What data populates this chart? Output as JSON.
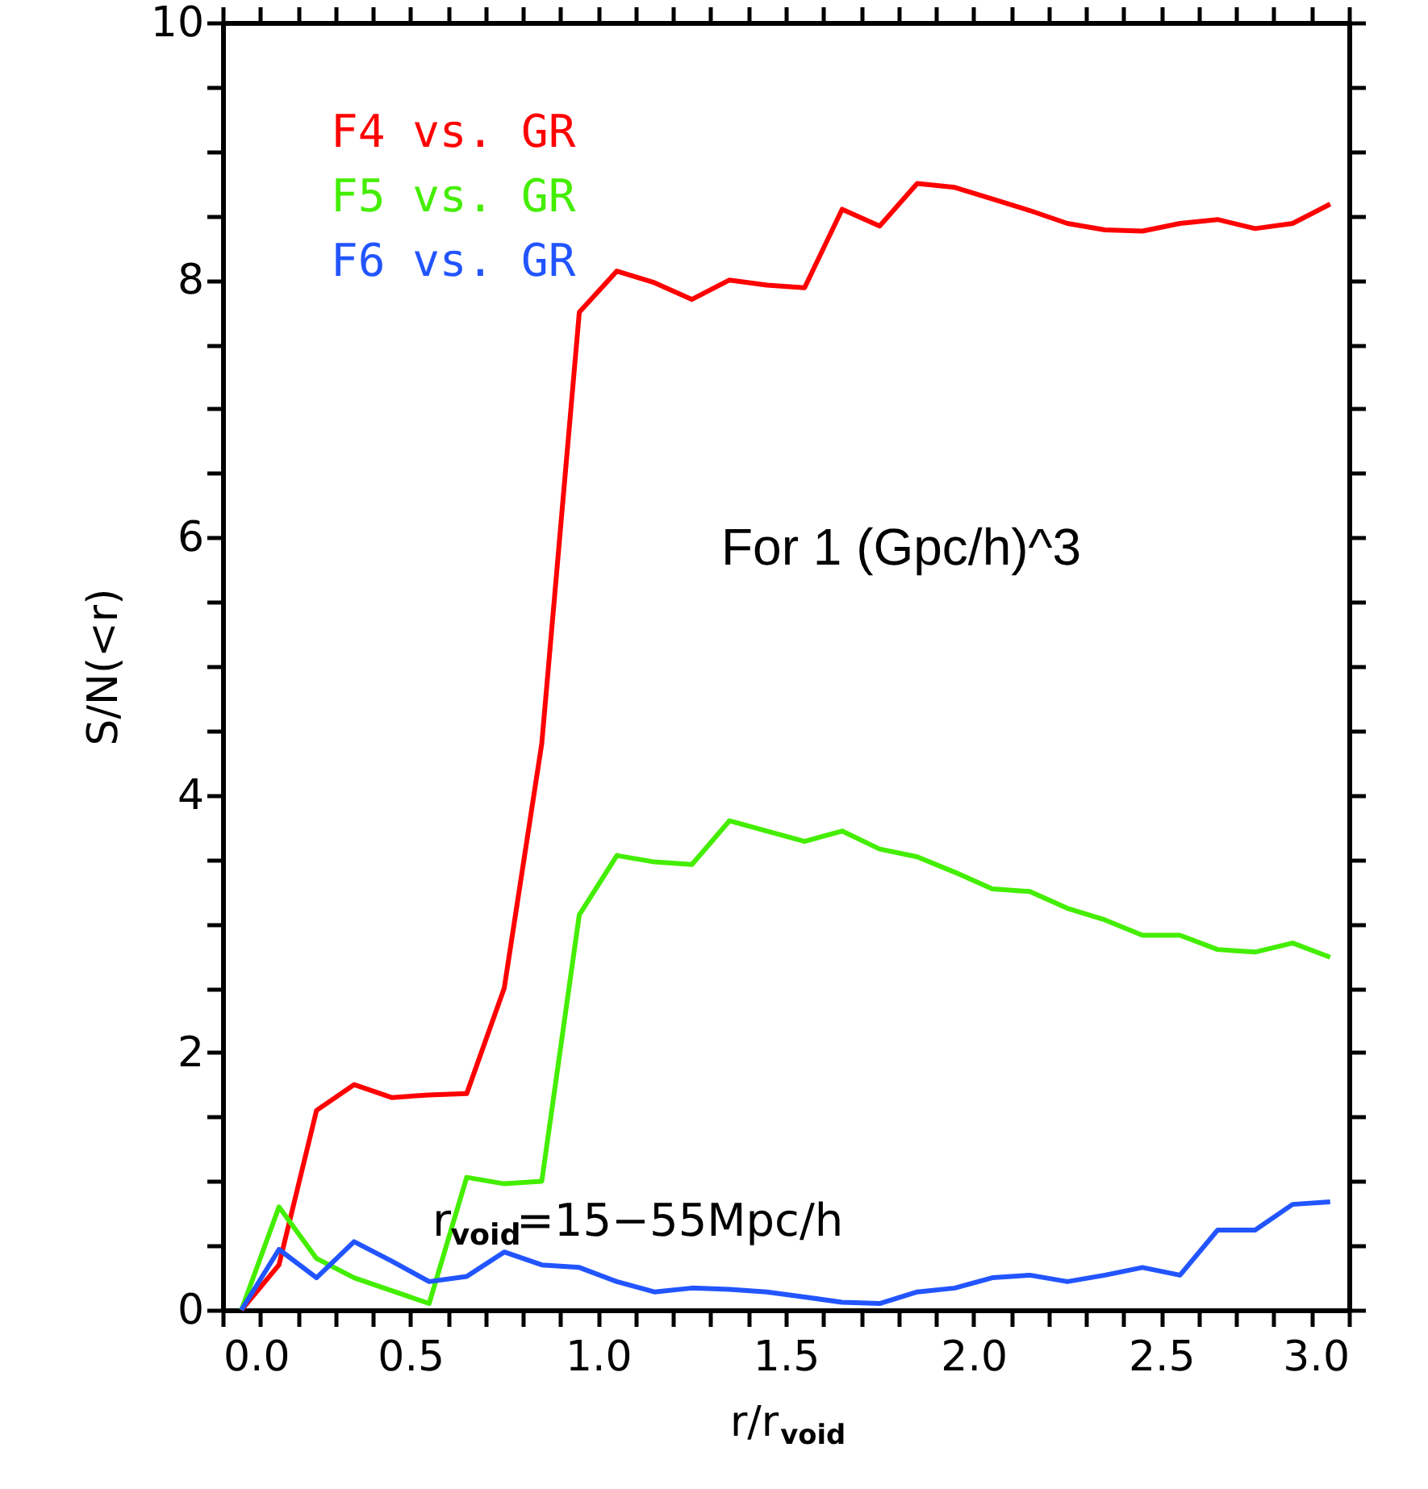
{
  "chart_data": {
    "type": "line",
    "xlabel": "r/r$_{void}$",
    "ylabel": "S/N(<r)",
    "x": [
      0.05,
      0.15,
      0.25,
      0.35,
      0.45,
      0.55,
      0.65,
      0.75,
      0.85,
      0.95,
      1.05,
      1.15,
      1.25,
      1.35,
      1.45,
      1.55,
      1.65,
      1.75,
      1.85,
      1.95,
      2.05,
      2.15,
      2.25,
      2.35,
      2.45,
      2.55,
      2.65,
      2.75,
      2.85,
      2.95
    ],
    "series": [
      {
        "name": "F4 vs. GR",
        "color": "#ff0000",
        "values": [
          0,
          0.35,
          1.55,
          1.75,
          1.65,
          1.67,
          1.68,
          2.5,
          4.4,
          7.75,
          8.07,
          7.98,
          7.85,
          8.0,
          7.96,
          7.94,
          8.55,
          8.42,
          8.75,
          8.72,
          8.63,
          8.54,
          8.44,
          8.39,
          8.38,
          8.44,
          8.47,
          8.4,
          8.44,
          8.59
        ]
      },
      {
        "name": "F5 vs. GR",
        "color": "#44ee00",
        "values": [
          0,
          0.8,
          0.4,
          0.25,
          0.15,
          0.05,
          1.03,
          0.98,
          1.0,
          3.07,
          3.53,
          3.48,
          3.46,
          3.8,
          3.72,
          3.64,
          3.72,
          3.58,
          3.52,
          3.4,
          3.27,
          3.25,
          3.12,
          3.03,
          2.91,
          2.91,
          2.8,
          2.78,
          2.85,
          2.74
        ]
      },
      {
        "name": "F6 vs. GR",
        "color": "#2255ff",
        "values": [
          0,
          0.47,
          0.25,
          0.53,
          0.38,
          0.22,
          0.26,
          0.45,
          0.35,
          0.33,
          0.22,
          0.14,
          0.17,
          0.16,
          0.14,
          0.1,
          0.06,
          0.05,
          0.14,
          0.17,
          0.25,
          0.27,
          0.22,
          0.27,
          0.33,
          0.27,
          0.62,
          0.62,
          0.82,
          0.84
        ]
      }
    ],
    "xlim": [
      0,
      3.0
    ],
    "xticks": [
      "0.0",
      {
        "value": 0.1,
        "label": null
      },
      {
        "value": 0.2,
        "label": null
      },
      {
        "value": 0.3,
        "label": null
      },
      {
        "value": 0.4,
        "label": null
      },
      {
        "value": 0.5,
        "label": "0.5"
      },
      {
        "value": 0.6,
        "label": null
      },
      {
        "value": 0.7,
        "label": null
      },
      {
        "value": 0.8,
        "label": null
      },
      {
        "value": 0.9,
        "label": null
      },
      {
        "value": 1.0,
        "label": "1.0"
      },
      {
        "value": 1.1,
        "label": null
      },
      {
        "value": 1.2,
        "label": null
      },
      {
        "value": 1.3,
        "label": null
      },
      {
        "value": 1.4,
        "label": null
      },
      {
        "value": 1.5,
        "label": "1.5"
      },
      {
        "value": 1.6,
        "label": null
      },
      {
        "value": 1.7,
        "label": null
      },
      {
        "value": 1.8,
        "label": null
      },
      {
        "value": 1.9,
        "label": null
      },
      {
        "value": 2.0,
        "label": "2.0"
      },
      {
        "value": 2.1,
        "label": null
      },
      {
        "value": 2.2,
        "label": null
      },
      {
        "value": 2.3,
        "label": null
      },
      {
        "value": 2.4,
        "label": null
      },
      {
        "value": 2.5,
        "label": "2.5"
      },
      {
        "value": 2.6,
        "label": null
      },
      {
        "value": 2.7,
        "label": null
      },
      {
        "value": 2.8,
        "label": null
      },
      {
        "value": 2.9,
        "label": null
      },
      {
        "value": 3.0,
        "label": "3.0"
      }
    ],
    "ylim": [
      0,
      10
    ],
    "yticks": [
      0,
      {
        "value": 0.5,
        "label": null
      },
      2,
      {
        "value": 1,
        "label": null
      },
      {
        "value": 1.5,
        "label": null
      },
      {
        "value": 2.5,
        "label": null
      },
      {
        "value": 3,
        "label": null
      },
      {
        "value": 3.5,
        "label": null
      },
      4,
      {
        "value": 4.5,
        "label": null
      },
      {
        "value": 5,
        "label": null
      },
      {
        "value": 5.5,
        "label": null
      },
      6,
      {
        "value": 6.5,
        "label": null
      },
      {
        "value": 7,
        "label": null
      },
      {
        "value": 7.5,
        "label": null
      },
      8,
      {
        "value": 8.5,
        "label": null
      },
      {
        "value": 9,
        "label": null
      },
      {
        "value": 9.5,
        "label": null
      },
      10
    ],
    "grid": false,
    "legend": "top left",
    "marker": "none",
    "line_style": "solid",
    "annotations": [
      "For 1 (Gpc/h)^3",
      "r$_{void}$=15−55Mpc/h"
    ]
  }
}
